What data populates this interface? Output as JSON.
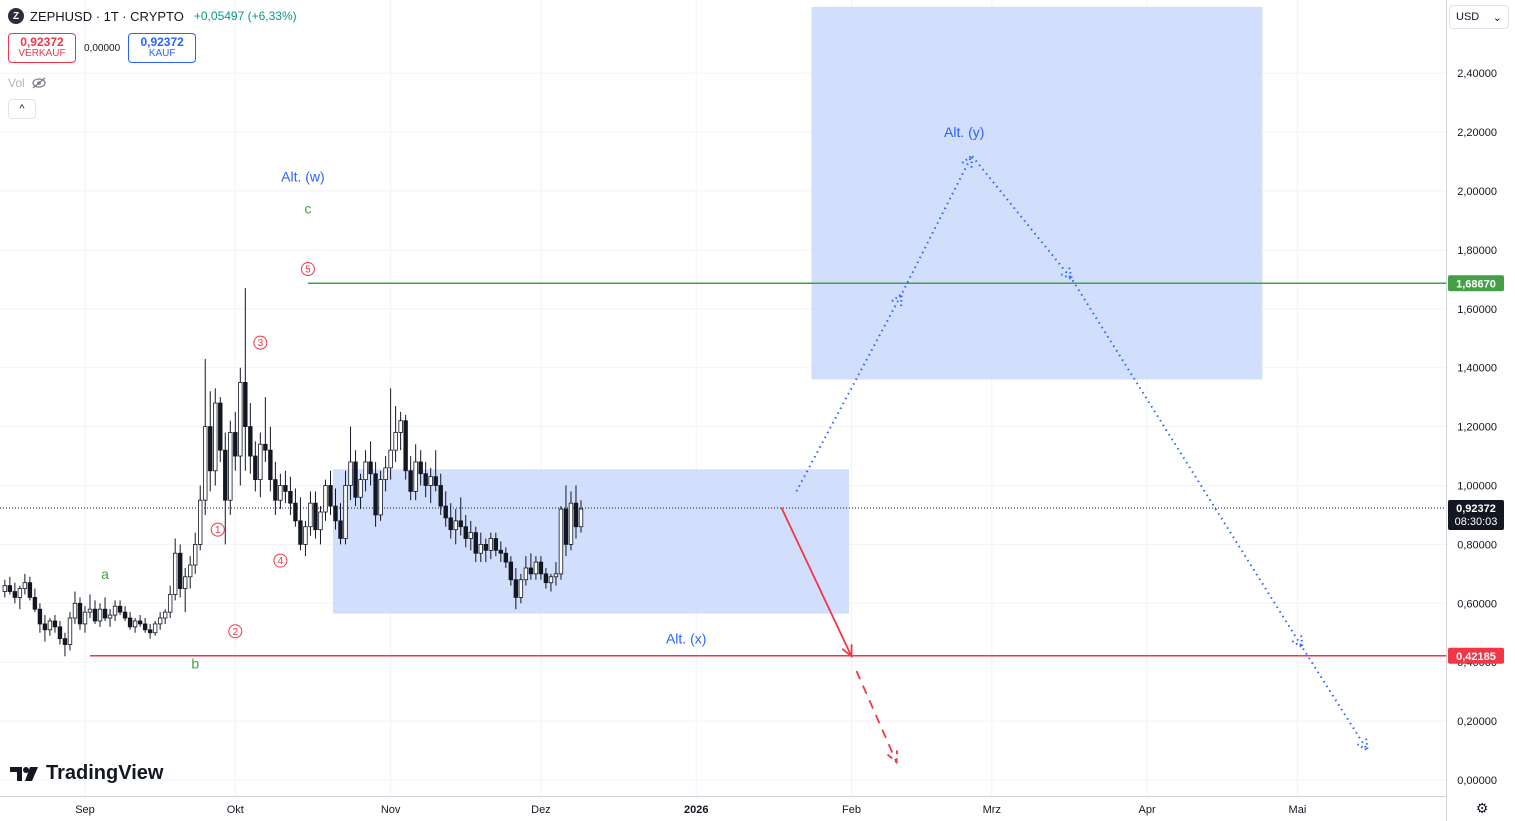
{
  "header": {
    "symbol": "ZEPHUSD · 1T · CRYPTO",
    "change": "+0,05497 (+6,33%)",
    "logo_letter": "Z"
  },
  "trade": {
    "sell_price": "0,92372",
    "sell_label": "VERKAUF",
    "spread": "0,00000",
    "buy_price": "0,92372",
    "buy_label": "KAUF"
  },
  "vol_label": "Vol",
  "collapse_glyph": "^",
  "currency": {
    "label": "USD",
    "chevron": "⌄"
  },
  "branding": {
    "name": "TradingView"
  },
  "settings_icon": "⚙",
  "colors": {
    "accent_blue": "#2962ff",
    "box_fill": "#c9d8fb",
    "resistance_green": "#43a047",
    "support_red": "#f23645",
    "wave_blue": "#2962ff",
    "wave_red": "#f23645",
    "wave_green": "#43a047"
  },
  "chart_data": {
    "type": "candlestick",
    "title": "ZEPHUSD · 1T · CRYPTO",
    "ylim": [
      0,
      2.6
    ],
    "y_ticks": [
      {
        "v": 0.0,
        "t": "0,00000"
      },
      {
        "v": 0.2,
        "t": "0,20000"
      },
      {
        "v": 0.4,
        "t": "0,40000"
      },
      {
        "v": 0.6,
        "t": "0,60000"
      },
      {
        "v": 0.8,
        "t": "0,80000"
      },
      {
        "v": 1.0,
        "t": "1,00000"
      },
      {
        "v": 1.2,
        "t": "1,20000"
      },
      {
        "v": 1.4,
        "t": "1,40000"
      },
      {
        "v": 1.6,
        "t": "1,60000"
      },
      {
        "v": 1.8,
        "t": "1,80000"
      },
      {
        "v": 2.0,
        "t": "2,00000"
      },
      {
        "v": 2.2,
        "t": "2,20000"
      },
      {
        "v": 2.4,
        "t": "2,40000"
      }
    ],
    "x_labels": [
      {
        "d": 0,
        "t": "Sep",
        "bold": false
      },
      {
        "d": 30,
        "t": "Okt",
        "bold": false
      },
      {
        "d": 61,
        "t": "Nov",
        "bold": false
      },
      {
        "d": 91,
        "t": "Dez",
        "bold": false
      },
      {
        "d": 122,
        "t": "2026",
        "bold": true
      },
      {
        "d": 153,
        "t": "Feb",
        "bold": false
      },
      {
        "d": 181,
        "t": "Mrz",
        "bold": false
      },
      {
        "d": 212,
        "t": "Apr",
        "bold": false
      },
      {
        "d": 242,
        "t": "Mai",
        "bold": false
      }
    ],
    "last_price": {
      "v": 0.92372,
      "label": "0,92372",
      "countdown": "08:30:03"
    },
    "levels": [
      {
        "name": "resistance",
        "v": 1.6867,
        "label": "1,68670",
        "color": "#43a047",
        "from_d": 44.5
      },
      {
        "name": "support",
        "v": 0.42185,
        "label": "0,42185",
        "color": "#f23645",
        "from_d": 1
      }
    ],
    "boxes": [
      {
        "name": "alt-x-zone",
        "d1": 49.5,
        "d2": 152.5,
        "v1": 0.565,
        "v2": 1.055
      },
      {
        "name": "alt-y-zone",
        "d1": 145,
        "d2": 235,
        "v1": 1.36,
        "v2": 2.625
      }
    ],
    "projections": [
      {
        "name": "blue-path",
        "color": "#2962ff",
        "dash": "dot",
        "points": [
          [
            142,
            0.98
          ],
          [
            163,
            1.65
          ],
          [
            177,
            2.12
          ],
          [
            197,
            1.7
          ],
          [
            243,
            0.45
          ],
          [
            256,
            0.1
          ]
        ]
      },
      {
        "name": "red-solid",
        "color": "#f23645",
        "dash": "solid",
        "points": [
          [
            139,
            0.925
          ],
          [
            153,
            0.42
          ]
        ]
      },
      {
        "name": "red-dashed",
        "color": "#f23645",
        "dash": "dash",
        "points": [
          [
            154,
            0.37
          ],
          [
            162,
            0.06
          ]
        ]
      }
    ],
    "wave_labels": [
      {
        "t": "Alt. (w)",
        "d": 43.5,
        "v": 2.05,
        "color": "#2962ff",
        "circle": false
      },
      {
        "t": "c",
        "d": 44.5,
        "v": 1.94,
        "color": "#43a047",
        "circle": false
      },
      {
        "t": "5",
        "d": 44.5,
        "v": 1.735,
        "color": "#f23645",
        "circle": true
      },
      {
        "t": "3",
        "d": 35.0,
        "v": 1.485,
        "color": "#f23645",
        "circle": true
      },
      {
        "t": "1",
        "d": 26.5,
        "v": 0.85,
        "color": "#f23645",
        "circle": true
      },
      {
        "t": "4",
        "d": 39.0,
        "v": 0.745,
        "color": "#f23645",
        "circle": true
      },
      {
        "t": "2",
        "d": 30.0,
        "v": 0.505,
        "color": "#f23645",
        "circle": true
      },
      {
        "t": "a",
        "d": 4.0,
        "v": 0.7,
        "color": "#43a047",
        "circle": false
      },
      {
        "t": "b",
        "d": 22.0,
        "v": 0.395,
        "color": "#43a047",
        "circle": false
      },
      {
        "t": "Alt. (x)",
        "d": 120.0,
        "v": 0.48,
        "color": "#2962ff",
        "circle": false
      },
      {
        "t": "Alt. (y)",
        "d": 175.5,
        "v": 2.2,
        "color": "#2962ff",
        "circle": false
      }
    ],
    "candles": [
      [
        -16,
        0.64,
        0.68,
        0.62,
        0.66
      ],
      [
        -15,
        0.66,
        0.69,
        0.63,
        0.64
      ],
      [
        -14,
        0.64,
        0.67,
        0.6,
        0.62
      ],
      [
        -13,
        0.62,
        0.66,
        0.58,
        0.65
      ],
      [
        -12,
        0.65,
        0.7,
        0.63,
        0.67
      ],
      [
        -11,
        0.67,
        0.69,
        0.61,
        0.62
      ],
      [
        -10,
        0.62,
        0.65,
        0.57,
        0.58
      ],
      [
        -9,
        0.58,
        0.6,
        0.5,
        0.53
      ],
      [
        -8,
        0.53,
        0.56,
        0.47,
        0.51
      ],
      [
        -7,
        0.51,
        0.55,
        0.49,
        0.54
      ],
      [
        -6,
        0.54,
        0.56,
        0.5,
        0.52
      ],
      [
        -5,
        0.52,
        0.54,
        0.46,
        0.48
      ],
      [
        -4,
        0.48,
        0.5,
        0.42,
        0.46
      ],
      [
        -3,
        0.46,
        0.57,
        0.44,
        0.55
      ],
      [
        -2,
        0.55,
        0.64,
        0.53,
        0.6
      ],
      [
        -1,
        0.6,
        0.62,
        0.51,
        0.53
      ],
      [
        0,
        0.53,
        0.59,
        0.5,
        0.57
      ],
      [
        1,
        0.57,
        0.63,
        0.55,
        0.58
      ],
      [
        2,
        0.58,
        0.61,
        0.53,
        0.54
      ],
      [
        3,
        0.54,
        0.6,
        0.52,
        0.58
      ],
      [
        4,
        0.58,
        0.62,
        0.54,
        0.55
      ],
      [
        5,
        0.55,
        0.58,
        0.52,
        0.56
      ],
      [
        6,
        0.56,
        0.61,
        0.54,
        0.59
      ],
      [
        7,
        0.59,
        0.61,
        0.56,
        0.57
      ],
      [
        8,
        0.57,
        0.59,
        0.54,
        0.55
      ],
      [
        9,
        0.55,
        0.57,
        0.51,
        0.52
      ],
      [
        10,
        0.52,
        0.55,
        0.5,
        0.54
      ],
      [
        11,
        0.54,
        0.56,
        0.52,
        0.53
      ],
      [
        12,
        0.53,
        0.55,
        0.5,
        0.51
      ],
      [
        13,
        0.51,
        0.53,
        0.48,
        0.5
      ],
      [
        14,
        0.5,
        0.54,
        0.49,
        0.53
      ],
      [
        15,
        0.53,
        0.57,
        0.51,
        0.55
      ],
      [
        16,
        0.55,
        0.58,
        0.53,
        0.57
      ],
      [
        17,
        0.57,
        0.66,
        0.55,
        0.63
      ],
      [
        18,
        0.63,
        0.82,
        0.61,
        0.77
      ],
      [
        19,
        0.77,
        0.8,
        0.62,
        0.65
      ],
      [
        20,
        0.65,
        0.72,
        0.57,
        0.69
      ],
      [
        21,
        0.69,
        0.76,
        0.65,
        0.73
      ],
      [
        22,
        0.73,
        0.84,
        0.7,
        0.8
      ],
      [
        23,
        0.8,
        1.0,
        0.78,
        0.95
      ],
      [
        24,
        0.95,
        1.43,
        0.9,
        1.2
      ],
      [
        25,
        1.2,
        1.32,
        0.98,
        1.05
      ],
      [
        26,
        1.05,
        1.33,
        1.0,
        1.28
      ],
      [
        27,
        1.28,
        1.3,
        1.08,
        1.12
      ],
      [
        28,
        1.12,
        1.18,
        0.8,
        0.95
      ],
      [
        29,
        0.95,
        1.22,
        0.9,
        1.18
      ],
      [
        30,
        1.18,
        1.25,
        1.05,
        1.1
      ],
      [
        31,
        1.1,
        1.4,
        1.0,
        1.35
      ],
      [
        32,
        1.35,
        1.67,
        1.05,
        1.2
      ],
      [
        33,
        1.2,
        1.28,
        1.04,
        1.1
      ],
      [
        34,
        1.1,
        1.15,
        0.98,
        1.02
      ],
      [
        35,
        1.02,
        1.18,
        0.96,
        1.14
      ],
      [
        36,
        1.14,
        1.3,
        1.08,
        1.12
      ],
      [
        37,
        1.12,
        1.2,
        0.98,
        1.02
      ],
      [
        38,
        1.02,
        1.08,
        0.9,
        0.95
      ],
      [
        39,
        0.95,
        1.04,
        0.92,
        1.0
      ],
      [
        40,
        1.0,
        1.05,
        0.94,
        0.98
      ],
      [
        41,
        0.98,
        1.03,
        0.9,
        0.94
      ],
      [
        42,
        0.94,
        0.99,
        0.86,
        0.88
      ],
      [
        43,
        0.88,
        0.96,
        0.78,
        0.8
      ],
      [
        44,
        0.8,
        0.88,
        0.76,
        0.86
      ],
      [
        45,
        0.86,
        0.98,
        0.83,
        0.94
      ],
      [
        46,
        0.94,
        0.98,
        0.82,
        0.85
      ],
      [
        47,
        0.85,
        0.93,
        0.8,
        0.91
      ],
      [
        48,
        0.91,
        1.02,
        0.88,
        1.0
      ],
      [
        49,
        1.0,
        1.05,
        0.9,
        0.93
      ],
      [
        50,
        0.93,
        0.99,
        0.85,
        0.88
      ],
      [
        51,
        0.88,
        0.94,
        0.8,
        0.82
      ],
      [
        52,
        0.82,
        1.05,
        0.8,
        1.0
      ],
      [
        53,
        1.0,
        1.2,
        0.95,
        1.08
      ],
      [
        54,
        1.08,
        1.12,
        0.93,
        0.96
      ],
      [
        55,
        0.96,
        1.04,
        0.92,
        1.02
      ],
      [
        56,
        1.02,
        1.12,
        0.98,
        1.08
      ],
      [
        57,
        1.08,
        1.15,
        1.0,
        1.04
      ],
      [
        58,
        1.04,
        1.08,
        0.86,
        0.9
      ],
      [
        59,
        0.9,
        1.05,
        0.88,
        1.02
      ],
      [
        60,
        1.02,
        1.1,
        0.98,
        1.06
      ],
      [
        61,
        1.06,
        1.33,
        1.02,
        1.12
      ],
      [
        62,
        1.12,
        1.27,
        1.08,
        1.18
      ],
      [
        63,
        1.18,
        1.25,
        1.12,
        1.22
      ],
      [
        64,
        1.22,
        1.24,
        1.02,
        1.05
      ],
      [
        65,
        1.05,
        1.1,
        0.95,
        0.98
      ],
      [
        66,
        0.98,
        1.14,
        0.95,
        1.08
      ],
      [
        67,
        1.08,
        1.12,
        1.0,
        1.04
      ],
      [
        68,
        1.04,
        1.08,
        0.96,
        1.0
      ],
      [
        69,
        1.0,
        1.06,
        0.94,
        1.03
      ],
      [
        70,
        1.03,
        1.12,
        0.98,
        1.0
      ],
      [
        71,
        1.0,
        1.04,
        0.9,
        0.93
      ],
      [
        72,
        0.93,
        0.98,
        0.86,
        0.89
      ],
      [
        73,
        0.89,
        0.94,
        0.82,
        0.85
      ],
      [
        74,
        0.85,
        0.92,
        0.8,
        0.88
      ],
      [
        75,
        0.88,
        0.96,
        0.83,
        0.86
      ],
      [
        76,
        0.86,
        0.9,
        0.79,
        0.82
      ],
      [
        77,
        0.82,
        0.88,
        0.78,
        0.84
      ],
      [
        78,
        0.84,
        0.86,
        0.74,
        0.77
      ],
      [
        79,
        0.77,
        0.84,
        0.74,
        0.8
      ],
      [
        80,
        0.8,
        0.82,
        0.74,
        0.78
      ],
      [
        81,
        0.78,
        0.84,
        0.75,
        0.82
      ],
      [
        82,
        0.82,
        0.84,
        0.76,
        0.78
      ],
      [
        83,
        0.78,
        0.81,
        0.74,
        0.77
      ],
      [
        84,
        0.77,
        0.79,
        0.72,
        0.74
      ],
      [
        85,
        0.74,
        0.76,
        0.66,
        0.68
      ],
      [
        86,
        0.68,
        0.72,
        0.58,
        0.62
      ],
      [
        87,
        0.62,
        0.7,
        0.6,
        0.68
      ],
      [
        88,
        0.68,
        0.76,
        0.66,
        0.72
      ],
      [
        89,
        0.72,
        0.77,
        0.68,
        0.7
      ],
      [
        90,
        0.7,
        0.76,
        0.68,
        0.74
      ],
      [
        91,
        0.74,
        0.76,
        0.68,
        0.7
      ],
      [
        92,
        0.7,
        0.72,
        0.65,
        0.67
      ],
      [
        93,
        0.67,
        0.7,
        0.64,
        0.69
      ],
      [
        94,
        0.69,
        0.74,
        0.66,
        0.7
      ],
      [
        95,
        0.7,
        0.93,
        0.68,
        0.92
      ],
      [
        96,
        0.92,
        1.0,
        0.76,
        0.8
      ],
      [
        97,
        0.8,
        0.98,
        0.78,
        0.94
      ],
      [
        98,
        0.94,
        1.0,
        0.82,
        0.86
      ],
      [
        99,
        0.86,
        0.95,
        0.84,
        0.92
      ]
    ]
  }
}
